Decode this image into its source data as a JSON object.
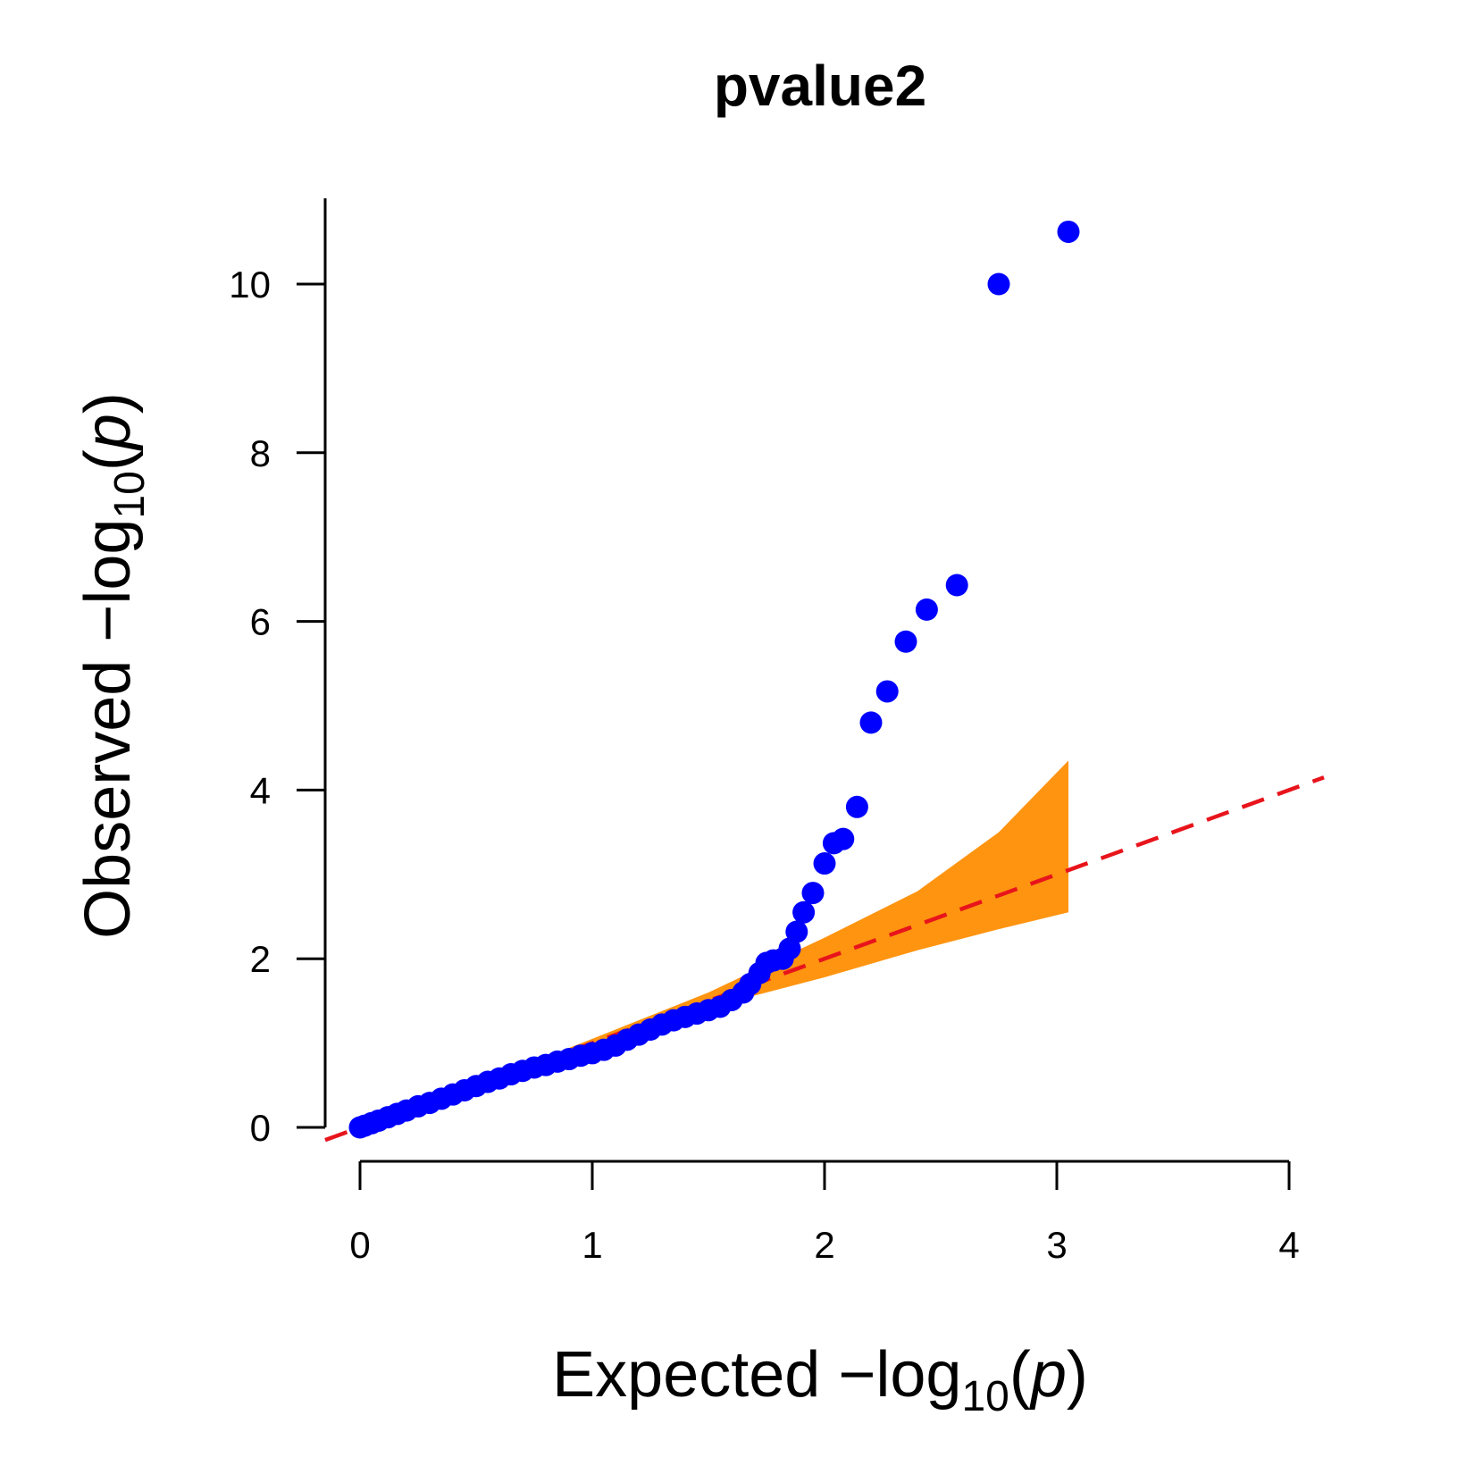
{
  "chart_data": {
    "type": "scatter",
    "title": "pvalue2",
    "xlabel": {
      "prefix": "Expected  −log",
      "subscript": "10",
      "paren_open": "(",
      "var": "p",
      "paren_close": ")"
    },
    "ylabel": {
      "prefix": "Observed  −log",
      "subscript": "10",
      "paren_open": "(",
      "var": "p",
      "paren_close": ")"
    },
    "xlim": [
      0,
      4
    ],
    "ylim": [
      0,
      10
    ],
    "x_ticks": [
      "0",
      "1",
      "2",
      "3",
      "4"
    ],
    "y_ticks": [
      "0",
      "2",
      "4",
      "6",
      "8",
      "10"
    ],
    "grid": false,
    "reference_line": {
      "slope": 1,
      "intercept": 0,
      "color": "#e8141c",
      "style": "dashed"
    },
    "confidence_band": {
      "color": "#ff9410",
      "x": [
        0.6,
        1.0,
        1.5,
        2.0,
        2.4,
        2.75,
        3.05
      ],
      "upper": [
        0.62,
        1.05,
        1.6,
        2.25,
        2.8,
        3.5,
        4.35
      ],
      "lower": [
        0.58,
        0.95,
        1.42,
        1.78,
        2.1,
        2.35,
        2.55
      ]
    },
    "series": [
      {
        "color": "#0000ff",
        "points": [
          [
            0.0,
            0.0
          ],
          [
            0.02,
            0.02
          ],
          [
            0.05,
            0.05
          ],
          [
            0.08,
            0.08
          ],
          [
            0.12,
            0.12
          ],
          [
            0.16,
            0.16
          ],
          [
            0.2,
            0.2
          ],
          [
            0.25,
            0.25
          ],
          [
            0.3,
            0.29
          ],
          [
            0.35,
            0.34
          ],
          [
            0.4,
            0.39
          ],
          [
            0.45,
            0.44
          ],
          [
            0.5,
            0.49
          ],
          [
            0.55,
            0.54
          ],
          [
            0.6,
            0.58
          ],
          [
            0.65,
            0.63
          ],
          [
            0.7,
            0.67
          ],
          [
            0.75,
            0.71
          ],
          [
            0.8,
            0.74
          ],
          [
            0.85,
            0.78
          ],
          [
            0.9,
            0.81
          ],
          [
            0.95,
            0.85
          ],
          [
            1.0,
            0.88
          ],
          [
            1.05,
            0.92
          ],
          [
            1.1,
            0.97
          ],
          [
            1.15,
            1.04
          ],
          [
            1.2,
            1.1
          ],
          [
            1.25,
            1.16
          ],
          [
            1.3,
            1.22
          ],
          [
            1.35,
            1.27
          ],
          [
            1.4,
            1.31
          ],
          [
            1.45,
            1.35
          ],
          [
            1.5,
            1.39
          ],
          [
            1.55,
            1.43
          ],
          [
            1.6,
            1.51
          ],
          [
            1.65,
            1.6
          ],
          [
            1.68,
            1.7
          ],
          [
            1.72,
            1.83
          ],
          [
            1.75,
            1.95
          ],
          [
            1.78,
            1.98
          ],
          [
            1.82,
            2.0
          ],
          [
            1.85,
            2.12
          ],
          [
            1.88,
            2.32
          ],
          [
            1.91,
            2.55
          ],
          [
            1.95,
            2.78
          ],
          [
            2.0,
            3.13
          ],
          [
            2.04,
            3.37
          ],
          [
            2.08,
            3.42
          ],
          [
            2.14,
            3.8
          ],
          [
            2.2,
            4.8
          ],
          [
            2.27,
            5.17
          ],
          [
            2.35,
            5.76
          ],
          [
            2.44,
            6.14
          ],
          [
            2.57,
            6.43
          ],
          [
            2.75,
            10.0
          ],
          [
            3.05,
            10.62
          ]
        ]
      }
    ]
  }
}
